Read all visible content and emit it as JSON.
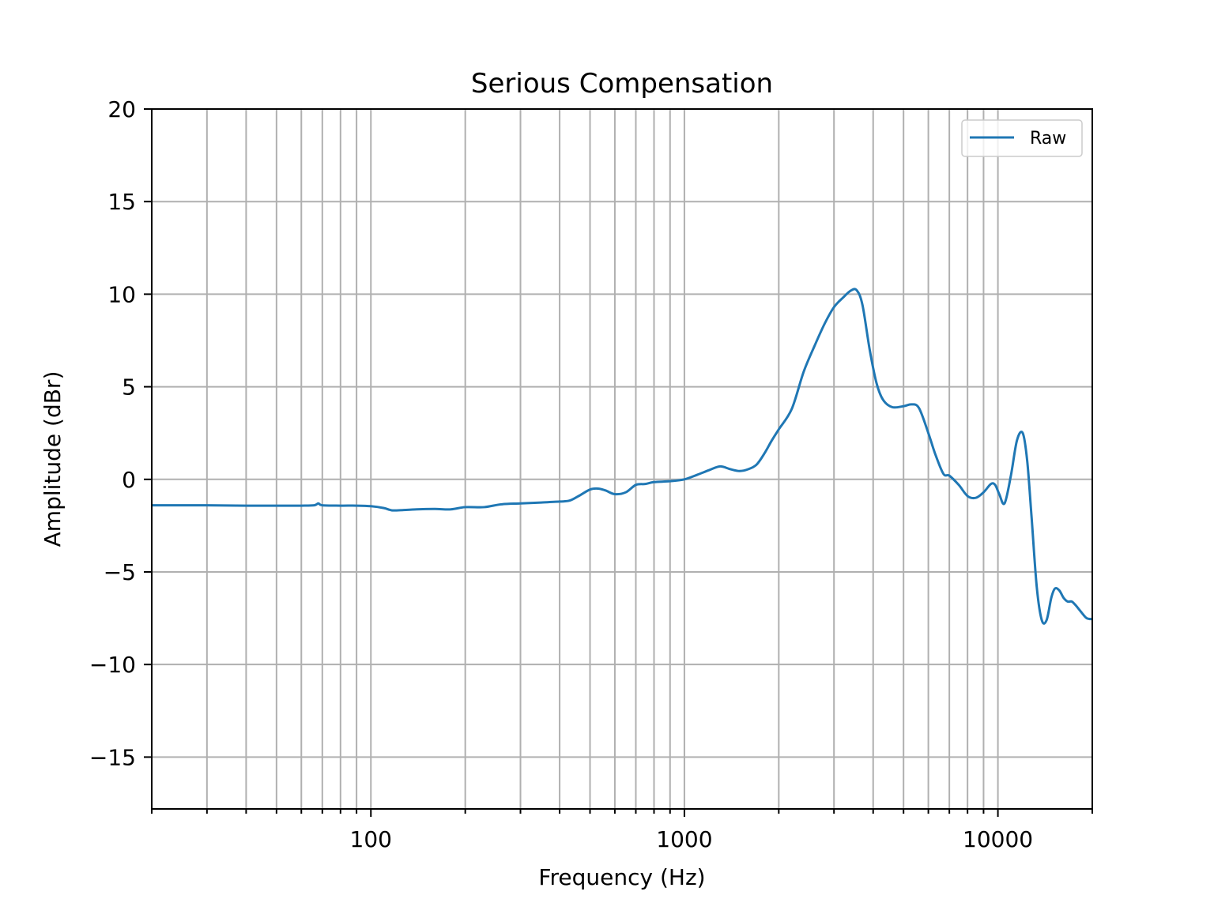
{
  "chart_data": {
    "type": "line",
    "title": "Serious Compensation",
    "xlabel": "Frequency (Hz)",
    "ylabel": "Amplitude (dBr)",
    "xscale": "log",
    "xlim": [
      20,
      20000
    ],
    "ylim": [
      -17.8,
      20
    ],
    "x_tick_values": [
      100,
      1000,
      10000
    ],
    "x_tick_labels": [
      "100",
      "1000",
      "10000"
    ],
    "y_tick_values": [
      -15,
      -10,
      -5,
      0,
      5,
      10,
      15,
      20
    ],
    "y_tick_labels": [
      "−15",
      "−10",
      "−5",
      "0",
      "5",
      "10",
      "15",
      "20"
    ],
    "grid": true,
    "legend_position": "top-right",
    "colors": {
      "Raw": "#1f77b4",
      "grid": "#b0b0b0"
    },
    "series": [
      {
        "name": "Raw",
        "x": [
          20,
          30,
          40,
          50,
          60,
          66,
          68,
          70,
          80,
          90,
          100,
          110,
          115,
          120,
          140,
          160,
          180,
          200,
          230,
          260,
          300,
          350,
          400,
          430,
          460,
          500,
          530,
          560,
          600,
          650,
          700,
          750,
          800,
          900,
          1000,
          1100,
          1200,
          1300,
          1400,
          1500,
          1600,
          1700,
          1800,
          1900,
          2000,
          2200,
          2400,
          2600,
          2800,
          3000,
          3200,
          3400,
          3550,
          3700,
          3900,
          4100,
          4300,
          4600,
          5000,
          5300,
          5600,
          6000,
          6300,
          6700,
          7000,
          7500,
          8000,
          8500,
          9000,
          9500,
          9800,
          10100,
          10500,
          11000,
          11500,
          12000,
          12400,
          12800,
          13300,
          13800,
          14300,
          14800,
          15200,
          15700,
          16200,
          16700,
          17200,
          17700,
          18500,
          19200,
          20000
        ],
        "y": [
          -1.4,
          -1.4,
          -1.42,
          -1.42,
          -1.42,
          -1.4,
          -1.3,
          -1.4,
          -1.42,
          -1.42,
          -1.45,
          -1.55,
          -1.65,
          -1.68,
          -1.62,
          -1.6,
          -1.62,
          -1.5,
          -1.5,
          -1.35,
          -1.3,
          -1.25,
          -1.2,
          -1.15,
          -0.9,
          -0.55,
          -0.5,
          -0.6,
          -0.8,
          -0.7,
          -0.3,
          -0.25,
          -0.15,
          -0.1,
          0.0,
          0.25,
          0.5,
          0.7,
          0.55,
          0.45,
          0.55,
          0.8,
          1.4,
          2.1,
          2.7,
          3.8,
          5.8,
          7.2,
          8.4,
          9.3,
          9.8,
          10.2,
          10.2,
          9.4,
          7.0,
          5.2,
          4.3,
          3.9,
          3.95,
          4.05,
          3.85,
          2.5,
          1.4,
          0.3,
          0.2,
          -0.3,
          -0.9,
          -1.0,
          -0.7,
          -0.25,
          -0.3,
          -0.8,
          -1.3,
          0.2,
          2.1,
          2.5,
          1.0,
          -2.0,
          -5.8,
          -7.6,
          -7.6,
          -6.4,
          -5.9,
          -6.0,
          -6.4,
          -6.6,
          -6.6,
          -6.8,
          -7.2,
          -7.5,
          -7.55
        ]
      }
    ]
  }
}
